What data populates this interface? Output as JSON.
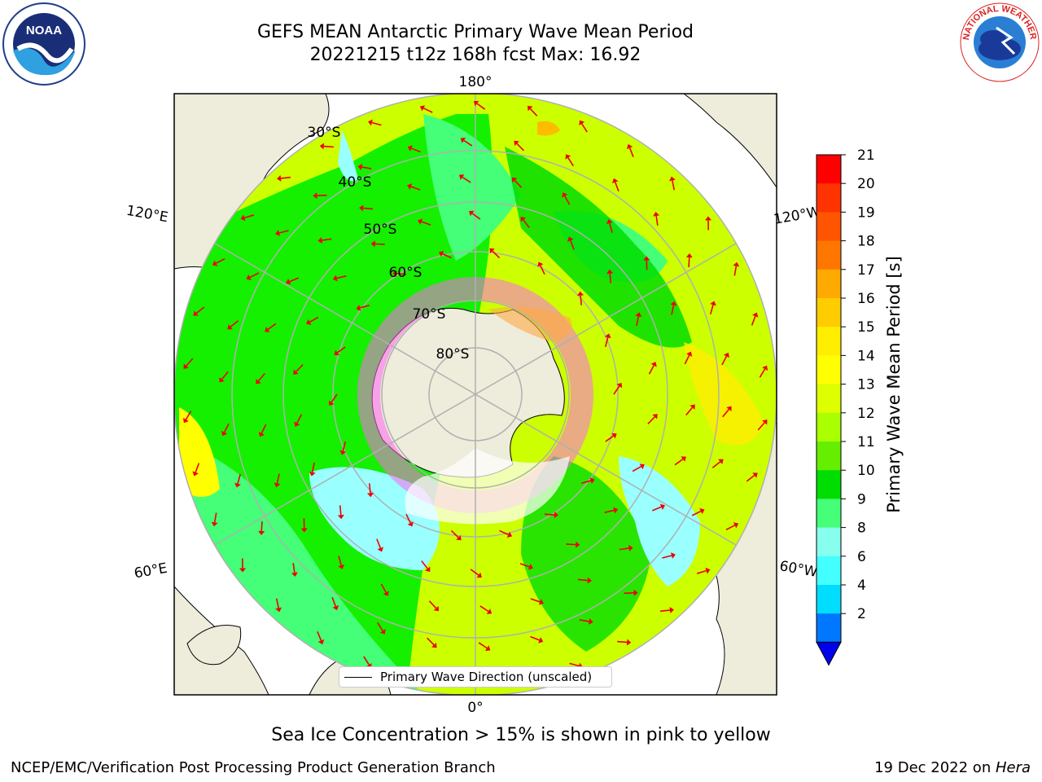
{
  "header": {
    "title_line1": "GEFS MEAN Antarctic Primary Wave Mean Period",
    "title_line2": "20221215 t12z 168h fcst   Max: 16.92"
  },
  "logos": {
    "left": {
      "name": "noaa-logo",
      "text": "NOAA",
      "ring_text": "NATIONAL OCEANIC AND ATMOSPHERIC ADMINISTRATION · U.S. DEPARTMENT OF COMMERCE"
    },
    "right": {
      "name": "nws-logo",
      "ring_text": "NATIONAL WEATHER SERVICE"
    }
  },
  "map": {
    "projection": "south-polar-stereographic",
    "longitude_labels": {
      "top": "180°",
      "bottom": "0°",
      "left_upper": "120°E",
      "left_lower": "60°E",
      "right_upper": "120°W",
      "right_lower": "60°W"
    },
    "latitude_labels": [
      "30°S",
      "40°S",
      "50°S",
      "60°S",
      "70°S",
      "80°S"
    ],
    "land_color": "#eeecdb",
    "ocean_colors": {
      "dominant_west": "#00ee00",
      "dominant_east": "#ccff00",
      "patches_cyan": "#99ffff",
      "patches_light_green": "#55ff77",
      "patches_orange": "#ffbb00"
    },
    "arrow_color": "#ee0000",
    "grid_color": "#b0b0b0"
  },
  "legend": {
    "label": "Primary Wave Direction (unscaled)"
  },
  "colorbar": {
    "label": "Primary Wave Mean Period [s]",
    "ticks": [
      "21",
      "20",
      "19",
      "18",
      "17",
      "16",
      "15",
      "14",
      "13",
      "12",
      "11",
      "10",
      "9",
      "8",
      "6",
      "4",
      "2"
    ],
    "colors_top_to_bottom": [
      "#ff0000",
      "#ff3300",
      "#ff5500",
      "#ff7700",
      "#ffaa00",
      "#ffcc00",
      "#ffee00",
      "#ffff00",
      "#ddff00",
      "#aaff00",
      "#66ee00",
      "#00dd00",
      "#44ff77",
      "#88ffee",
      "#44ffff",
      "#00ddff",
      "#0077ff"
    ],
    "extend_color": "#0000ee"
  },
  "note": "Sea Ice Concentration > 15% is shown in pink to yellow",
  "footer": {
    "left": "NCEP/EMC/Verification Post Processing Product Generation Branch",
    "right_date": "19 Dec 2022 on ",
    "right_machine": "Hera"
  }
}
